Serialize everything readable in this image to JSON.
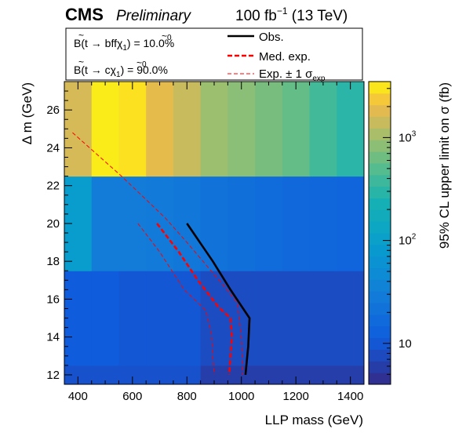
{
  "header": {
    "experiment": "CMS",
    "status": "Preliminary",
    "lumi": "100 fb",
    "lumi_exp": "−1",
    "energy": "(13 TeV)"
  },
  "legend": {
    "br1_prefix": "B(",
    "br1_main": "t → bff",
    "br1_chi": "χ",
    "br1_chi_sub": "1",
    "br1_chi_sup": "0",
    "br1_suffix": ") = 10.0%",
    "br2_prefix": "B(",
    "br2_main": "t → c",
    "br2_chi": "χ",
    "br2_chi_sub": "1",
    "br2_chi_sup": "0",
    "br2_suffix": ") = 90.0%",
    "obs": "Obs.",
    "med": "Med. exp.",
    "band": "Exp. ± 1 σ",
    "band_sub": "exp"
  },
  "chart_data": {
    "type": "heatmap",
    "xlabel": "LLP mass (GeV)",
    "ylabel": "Δ m (GeV)",
    "zlabel": "95% CL upper limit on σ (fb)",
    "xlim": [
      350,
      1450
    ],
    "ylim": [
      11.5,
      27.5
    ],
    "x_ticks": [
      400,
      600,
      800,
      1000,
      1200,
      1400
    ],
    "y_ticks": [
      12,
      14,
      16,
      18,
      20,
      22,
      24,
      26
    ],
    "z_log": true,
    "zlim": [
      4,
      3500
    ],
    "z_ticks": [
      {
        "v": 10,
        "label": "10",
        "exp": ""
      },
      {
        "v": 100,
        "label": "10",
        "exp": "2"
      },
      {
        "v": 1000,
        "label": "10",
        "exp": "3"
      }
    ],
    "x_edges": [
      350,
      450,
      550,
      650,
      750,
      850,
      950,
      1050,
      1150,
      1250,
      1350,
      1450
    ],
    "y_edges": [
      11.5,
      12.5,
      17.5,
      22.5,
      27.5
    ],
    "z": [
      [
        9,
        9,
        9,
        9,
        9,
        6,
        6,
        6,
        6,
        6,
        6
      ],
      [
        11,
        11,
        10,
        10,
        10,
        8,
        8,
        8,
        8,
        8,
        8
      ],
      [
        90,
        30,
        30,
        28,
        25,
        22,
        20,
        18,
        16,
        15,
        14
      ],
      [
        1600,
        3200,
        3000,
        1900,
        1400,
        950,
        820,
        700,
        580,
        400,
        300
      ]
    ],
    "series": [
      {
        "name": "Obs.",
        "style": "solid",
        "color": "#000000",
        "x": [
          800,
          895,
          960,
          1030,
          1025,
          1015
        ],
        "y": [
          20,
          18,
          16.5,
          15,
          13.5,
          12
        ]
      },
      {
        "name": "Med. exp.",
        "style": "dashed-thick",
        "color": "#ff0000",
        "x": [
          690,
          770,
          840,
          915,
          960,
          965,
          960,
          955
        ],
        "y": [
          20,
          18.5,
          17,
          15.6,
          15,
          14,
          13,
          12
        ]
      },
      {
        "name": "Exp. ± 1 σexp",
        "style": "dashed-thin",
        "color": "#ff0000",
        "x": [
          380,
          560,
          720,
          800,
          930,
          985,
          1000,
          1005
        ],
        "y": [
          24.8,
          22.5,
          20.3,
          19,
          16.8,
          15.8,
          14,
          12
        ]
      },
      {
        "name": "",
        "style": "dashed-thin",
        "color": "#ff0000",
        "x": [
          620,
          700,
          790,
          870,
          890,
          895,
          900
        ],
        "y": [
          20,
          18.5,
          16.5,
          15.4,
          14.2,
          13,
          12
        ]
      }
    ]
  }
}
